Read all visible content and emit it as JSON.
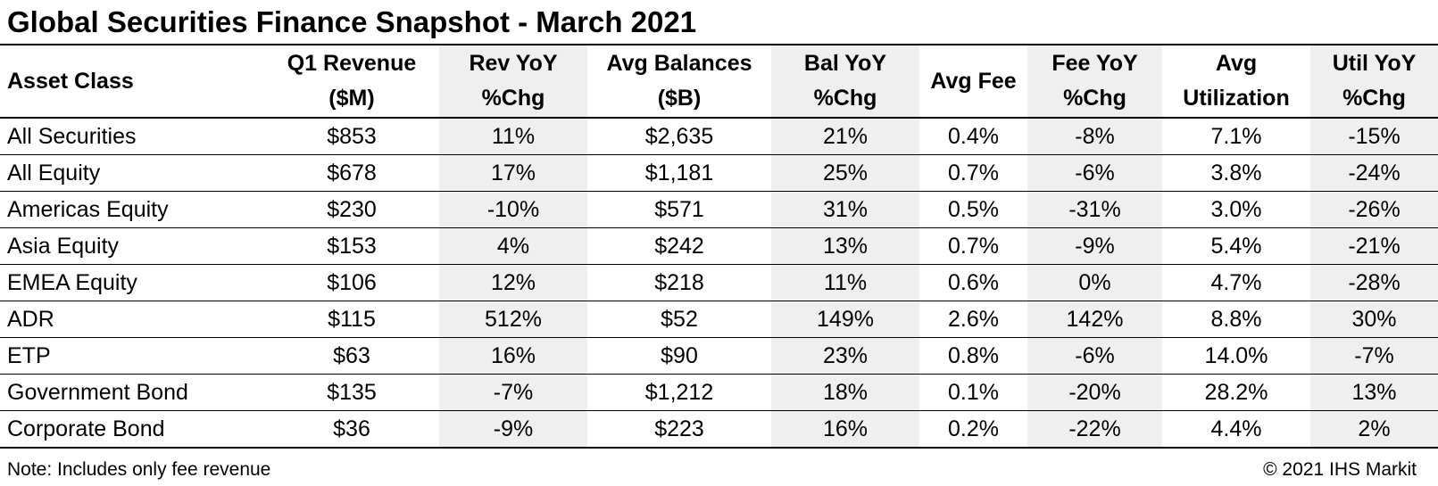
{
  "chart_data": {
    "type": "table",
    "title": "Global Securities Finance Snapshot - March 2021",
    "columns": [
      {
        "line1": "Asset Class",
        "line2": ""
      },
      {
        "line1": "Q1 Revenue",
        "line2": "($M)"
      },
      {
        "line1": "Rev YoY",
        "line2": "%Chg"
      },
      {
        "line1": "Avg Balances",
        "line2": "($B)"
      },
      {
        "line1": "Bal YoY",
        "line2": "%Chg"
      },
      {
        "line1": "Avg Fee",
        "line2": ""
      },
      {
        "line1": "Fee YoY",
        "line2": "%Chg"
      },
      {
        "line1": "Avg",
        "line2": "Utilization"
      },
      {
        "line1": "Util YoY",
        "line2": "%Chg"
      }
    ],
    "rows": [
      [
        "All Securities",
        "$853",
        "11%",
        "$2,635",
        "21%",
        "0.4%",
        "-8%",
        "7.1%",
        "-15%"
      ],
      [
        "All Equity",
        "$678",
        "17%",
        "$1,181",
        "25%",
        "0.7%",
        "-6%",
        "3.8%",
        "-24%"
      ],
      [
        "Americas Equity",
        "$230",
        "-10%",
        "$571",
        "31%",
        "0.5%",
        "-31%",
        "3.0%",
        "-26%"
      ],
      [
        "Asia Equity",
        "$153",
        "4%",
        "$242",
        "13%",
        "0.7%",
        "-9%",
        "5.4%",
        "-21%"
      ],
      [
        "EMEA Equity",
        "$106",
        "12%",
        "$218",
        "11%",
        "0.6%",
        "0%",
        "4.7%",
        "-28%"
      ],
      [
        "ADR",
        "$115",
        "512%",
        "$52",
        "149%",
        "2.6%",
        "142%",
        "8.8%",
        "30%"
      ],
      [
        "ETP",
        "$63",
        "16%",
        "$90",
        "23%",
        "0.8%",
        "-6%",
        "14.0%",
        "-7%"
      ],
      [
        "Government Bond",
        "$135",
        "-7%",
        "$1,212",
        "18%",
        "0.1%",
        "-20%",
        "28.2%",
        "13%"
      ],
      [
        "Corporate Bond",
        "$36",
        "-9%",
        "$223",
        "16%",
        "0.2%",
        "-22%",
        "4.4%",
        "2%"
      ]
    ],
    "note": "Note: Includes only fee revenue",
    "source": "© 2021 IHS Markit",
    "colors": {
      "shade": "#efefef",
      "border": "#000000",
      "text": "#000000"
    }
  }
}
